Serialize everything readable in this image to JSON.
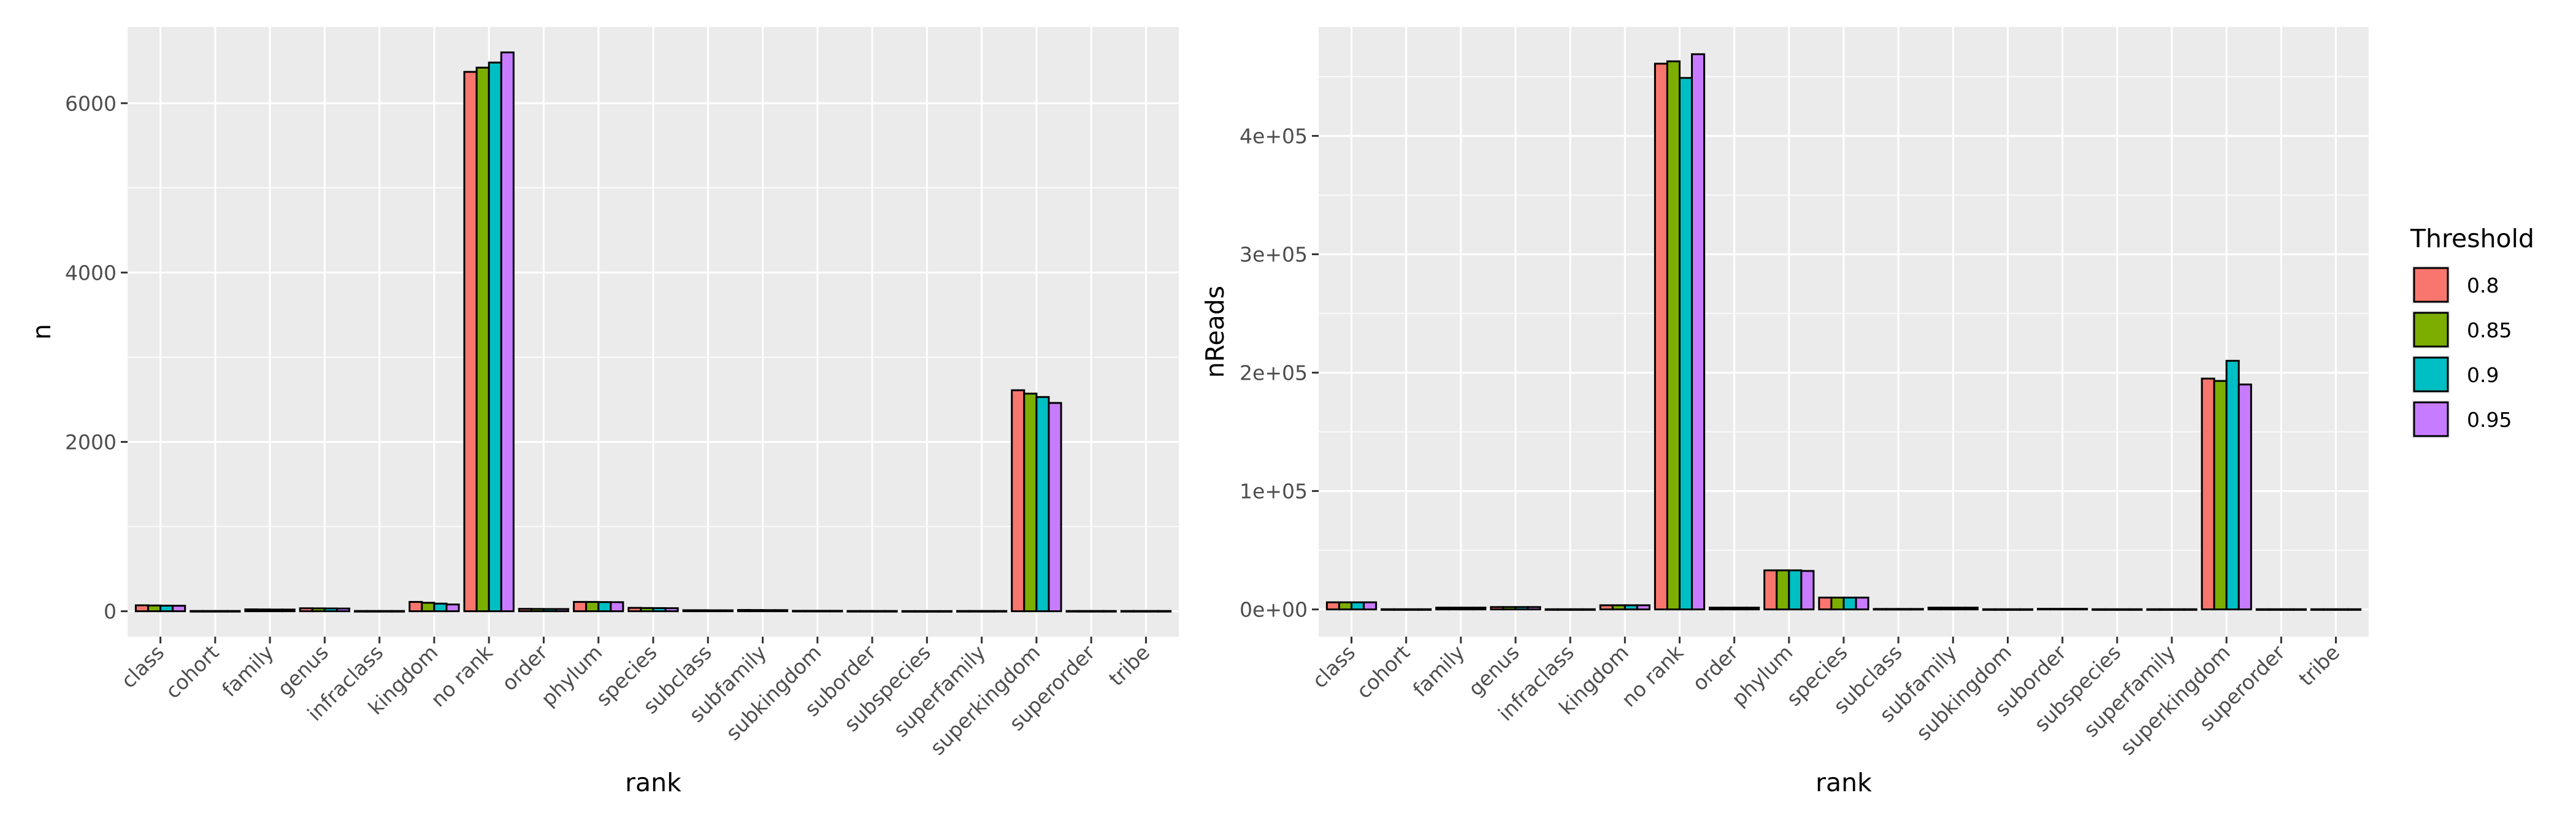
{
  "legend": {
    "title": "Threshold",
    "items": [
      {
        "label": "0.8",
        "color": "#F8766D"
      },
      {
        "label": "0.85",
        "color": "#7CAE00"
      },
      {
        "label": "0.9",
        "color": "#00BFC4"
      },
      {
        "label": "0.95",
        "color": "#C77CFF"
      }
    ]
  },
  "chart_data": [
    {
      "type": "bar",
      "xlabel": "rank",
      "ylabel": "n",
      "categories": [
        "class",
        "cohort",
        "family",
        "genus",
        "infraclass",
        "kingdom",
        "no rank",
        "order",
        "phylum",
        "species",
        "subclass",
        "subfamily",
        "subkingdom",
        "suborder",
        "subspecies",
        "superfamily",
        "superkingdom",
        "superorder",
        "tribe"
      ],
      "ylim": [
        -300,
        6900
      ],
      "yticks": [
        0,
        2000,
        4000,
        6000
      ],
      "ytick_labels": [
        "0",
        "2000",
        "4000",
        "6000"
      ],
      "grid": true,
      "series": [
        {
          "name": "0.8",
          "values": [
            70,
            3,
            22,
            35,
            3,
            110,
            6370,
            28,
            110,
            40,
            12,
            15,
            5,
            3,
            2,
            3,
            2610,
            3,
            3
          ]
        },
        {
          "name": "0.85",
          "values": [
            68,
            3,
            21,
            34,
            3,
            100,
            6420,
            27,
            110,
            38,
            12,
            14,
            5,
            3,
            2,
            3,
            2570,
            3,
            3
          ]
        },
        {
          "name": "0.9",
          "values": [
            66,
            3,
            20,
            33,
            3,
            90,
            6480,
            26,
            108,
            37,
            11,
            13,
            5,
            3,
            2,
            3,
            2530,
            3,
            3
          ]
        },
        {
          "name": "0.95",
          "values": [
            65,
            3,
            20,
            32,
            3,
            80,
            6600,
            26,
            107,
            36,
            11,
            13,
            5,
            3,
            2,
            3,
            2460,
            3,
            3
          ]
        }
      ]
    },
    {
      "type": "bar",
      "xlabel": "rank",
      "ylabel": "nReads",
      "categories": [
        "class",
        "cohort",
        "family",
        "genus",
        "infraclass",
        "kingdom",
        "no rank",
        "order",
        "phylum",
        "species",
        "subclass",
        "subfamily",
        "subkingdom",
        "suborder",
        "subspecies",
        "superfamily",
        "superkingdom",
        "superorder",
        "tribe"
      ],
      "ylim": [
        -23000,
        492000
      ],
      "yticks": [
        0,
        100000,
        200000,
        300000,
        400000
      ],
      "ytick_labels": [
        "0e+00",
        "1e+05",
        "2e+05",
        "3e+05",
        "4e+05"
      ],
      "grid": true,
      "series": [
        {
          "name": "0.8",
          "values": [
            6000,
            150,
            1500,
            2000,
            150,
            3500,
            461000,
            1500,
            33000,
            10000,
            400,
            1500,
            150,
            500,
            150,
            150,
            195000,
            150,
            150
          ]
        },
        {
          "name": "0.85",
          "values": [
            6000,
            150,
            1500,
            2000,
            150,
            3500,
            463000,
            1500,
            33000,
            10000,
            400,
            1500,
            150,
            500,
            150,
            150,
            193000,
            150,
            150
          ]
        },
        {
          "name": "0.9",
          "values": [
            6000,
            150,
            1500,
            2000,
            150,
            3500,
            449000,
            1500,
            33000,
            10000,
            400,
            1500,
            150,
            500,
            150,
            150,
            210000,
            150,
            150
          ]
        },
        {
          "name": "0.95",
          "values": [
            6000,
            150,
            1500,
            2000,
            150,
            3500,
            469000,
            1500,
            32500,
            10000,
            400,
            1500,
            150,
            500,
            150,
            150,
            190000,
            150,
            150
          ]
        }
      ]
    }
  ]
}
